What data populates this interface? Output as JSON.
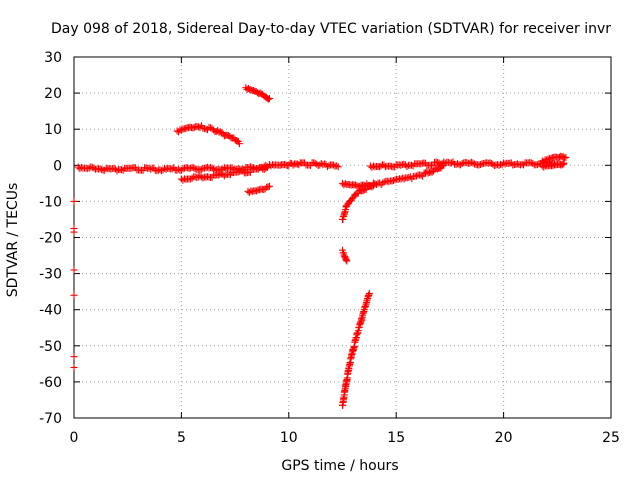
{
  "chart_data": {
    "type": "scatter",
    "title": "Day 098 of 2018, Sidereal Day-to-day VTEC variation (SDTVAR) for receiver invr",
    "xlabel": "GPS time / hours",
    "ylabel": "SDTVAR / TECUs",
    "xlim": [
      0,
      25
    ],
    "ylim": [
      -70,
      30
    ],
    "xticks": [
      0,
      5,
      10,
      15,
      20,
      25
    ],
    "yticks": [
      -70,
      -60,
      -50,
      -40,
      -30,
      -20,
      -10,
      0,
      10,
      20,
      30
    ],
    "grid": true,
    "marker": "+",
    "color": "#ff0000",
    "segments": [
      {
        "name": "main-band-early",
        "x": [
          0.2,
          1.0,
          2.0,
          3.0,
          4.0,
          5.0,
          6.0,
          7.0,
          8.0,
          9.0
        ],
        "y": [
          -0.5,
          -0.8,
          -1.2,
          -1.0,
          -1.2,
          -1.0,
          -0.9,
          -1.0,
          -0.8,
          -0.4
        ]
      },
      {
        "name": "band-lower-rise",
        "x": [
          5.0,
          6.0,
          7.0,
          8.0,
          9.0
        ],
        "y": [
          -3.8,
          -3.2,
          -2.6,
          -1.8,
          -0.6
        ]
      },
      {
        "name": "arc-positive",
        "x": [
          4.8,
          5.2,
          5.6,
          6.0,
          6.5,
          7.0,
          7.5,
          7.7
        ],
        "y": [
          9.5,
          10.5,
          10.8,
          10.6,
          9.8,
          8.5,
          7.0,
          6.0
        ]
      },
      {
        "name": "high-short",
        "x": [
          8.0,
          8.3,
          8.6,
          8.9,
          9.1
        ],
        "y": [
          21.5,
          21.0,
          20.2,
          19.3,
          18.5
        ]
      },
      {
        "name": "low-short",
        "x": [
          8.1,
          8.5,
          8.9,
          9.1
        ],
        "y": [
          -7.2,
          -6.8,
          -6.2,
          -5.8
        ]
      },
      {
        "name": "mid-band",
        "x": [
          9.1,
          9.6,
          10.2,
          10.8,
          11.3,
          11.8,
          12.3
        ],
        "y": [
          0.2,
          0.3,
          0.4,
          0.4,
          0.3,
          0.0,
          -0.4
        ]
      },
      {
        "name": "dip-recovery",
        "x": [
          12.5,
          12.7,
          13.0,
          13.4,
          13.8,
          14.3,
          14.8,
          15.3,
          15.8,
          16.3,
          16.8,
          17.2
        ],
        "y": [
          -15,
          -11,
          -8.5,
          -6.8,
          -5.8,
          -5.0,
          -4.4,
          -3.9,
          -3.3,
          -2.5,
          -1.2,
          0.0
        ]
      },
      {
        "name": "dip-flat",
        "x": [
          12.5,
          12.9,
          13.3,
          13.7,
          14.0
        ],
        "y": [
          -5.0,
          -5.2,
          -5.5,
          -5.4,
          -5.2
        ]
      },
      {
        "name": "short-negative",
        "x": [
          12.5,
          12.6,
          12.7
        ],
        "y": [
          -23.5,
          -25.0,
          -26.5
        ]
      },
      {
        "name": "deep-drop",
        "x": [
          12.5,
          12.65,
          12.8,
          13.0,
          13.2,
          13.4,
          13.6,
          13.75
        ],
        "y": [
          -66.5,
          -61.0,
          -56.0,
          -51.0,
          -46.5,
          -42.5,
          -38.5,
          -35.5
        ]
      },
      {
        "name": "late-band",
        "x": [
          13.8,
          14.5,
          15.5,
          16.5,
          17.0,
          18.0,
          19.0,
          20.0,
          21.0,
          22.0,
          22.8
        ],
        "y": [
          -0.2,
          -0.1,
          0.0,
          0.3,
          0.6,
          0.5,
          0.4,
          0.3,
          0.5,
          0.6,
          0.4
        ]
      },
      {
        "name": "late-upper",
        "x": [
          21.8,
          22.2,
          22.6,
          22.9
        ],
        "y": [
          1.2,
          2.2,
          2.6,
          2.2
        ]
      },
      {
        "name": "late-lower",
        "x": [
          21.8,
          22.3,
          22.8
        ],
        "y": [
          -0.2,
          0.2,
          0.6
        ]
      },
      {
        "name": "edge-marks",
        "x": [
          0.0,
          0.0,
          0.0,
          0.0,
          0.0,
          0.0,
          0.0
        ],
        "y": [
          -10,
          -18.5,
          -29,
          -36,
          -53,
          -56,
          -17.5
        ]
      }
    ]
  }
}
